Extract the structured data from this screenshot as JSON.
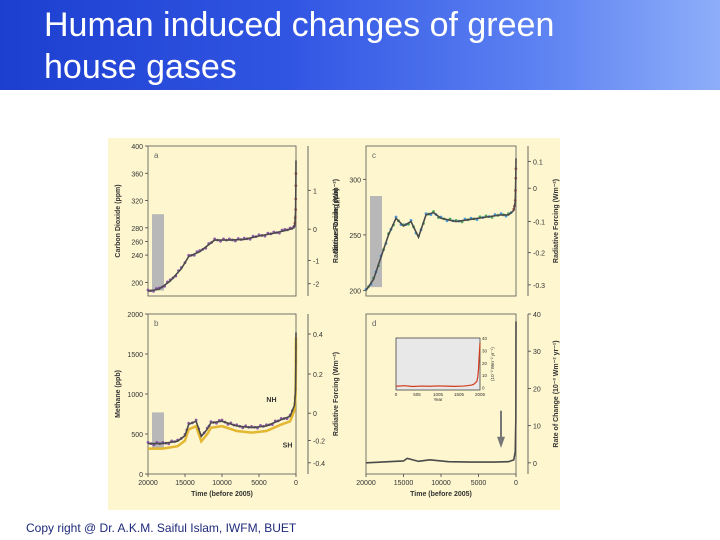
{
  "header": {
    "title_line1": "Human induced changes of green",
    "title_line2": "house gases"
  },
  "footer": {
    "credit": "Copy right @ Dr. A.K.M. Saiful Islam, IWFM, BUET"
  },
  "colors": {
    "background": "#fdf6cf",
    "main_series": "#4a4a4a",
    "panel_a_recent": "#c0392b",
    "panel_a_core": "#7a3fa0",
    "panel_c_core_1": "#2e8bd8",
    "panel_c_core_2": "#2e9a4a",
    "panel_c_recent": "#c0392b",
    "panel_b_nh": "#7a3fa0",
    "panel_b_sh": "#e0b020",
    "panel_d_inset": "#d23a1a",
    "range_bar": "#b8b8b8"
  },
  "chart_data": [
    {
      "id": "a",
      "type": "line",
      "panel_label": "a",
      "ylabel": "Carbon Dioxide (ppm)",
      "y2label": "Radiative Forcing (Wm⁻²)",
      "xlim": [
        20000,
        0
      ],
      "ylim": [
        180,
        400
      ],
      "yticks": [
        "400",
        "360",
        "320",
        "280",
        "260",
        "240",
        "200"
      ],
      "y2ticks": [
        "1",
        "0",
        "-1",
        "-2"
      ],
      "x": [
        20000,
        18500,
        17000,
        15500,
        14500,
        13000,
        11000,
        9000,
        7000,
        5000,
        3000,
        1500,
        800,
        300,
        150,
        50,
        20,
        0
      ],
      "values": [
        187,
        190,
        202,
        220,
        238,
        245,
        262,
        262,
        263,
        268,
        272,
        276,
        278,
        280,
        285,
        305,
        340,
        379
      ]
    },
    {
      "id": "c",
      "type": "line",
      "panel_label": "c",
      "ylabel": "Nitrous Oxide (ppb)",
      "y2label": "Radiative Forcing (Wm⁻²)",
      "xlim": [
        20000,
        0
      ],
      "ylim": [
        195,
        330
      ],
      "yticks": [
        "300",
        "250",
        "200"
      ],
      "y2ticks": [
        "0.1",
        "0",
        "-0.1",
        "-0.2",
        "-0.3"
      ],
      "x": [
        20000,
        19000,
        18000,
        17000,
        16000,
        15000,
        14000,
        13000,
        12000,
        11000,
        10000,
        8000,
        6000,
        4000,
        2000,
        1000,
        300,
        100,
        30,
        0
      ],
      "values": [
        200,
        210,
        230,
        250,
        265,
        258,
        262,
        248,
        268,
        270,
        265,
        262,
        264,
        266,
        268,
        268,
        272,
        280,
        300,
        319
      ]
    },
    {
      "id": "b",
      "type": "line",
      "panel_label": "b",
      "ylabel": "Methane (ppb)",
      "y2label": "Radiative Forcing (Wm⁻²)",
      "xlim": [
        20000,
        0
      ],
      "ylim": [
        0,
        2000
      ],
      "yticks": [
        "2000",
        "1500",
        "1000",
        "500",
        "0"
      ],
      "y2ticks": [
        "0.4",
        "0.2",
        "0",
        "-0.2",
        "-0.4"
      ],
      "annotations": [
        "NH",
        "SH"
      ],
      "x": [
        20000,
        18000,
        16000,
        15000,
        14500,
        13500,
        12800,
        12000,
        11500,
        10000,
        8000,
        6000,
        4000,
        2000,
        800,
        200,
        60,
        20,
        0
      ],
      "values": [
        380,
        380,
        410,
        480,
        620,
        660,
        470,
        560,
        640,
        660,
        600,
        580,
        600,
        680,
        720,
        860,
        1050,
        1400,
        1770
      ]
    },
    {
      "id": "d",
      "type": "line",
      "panel_label": "d",
      "y2label": "Rate of Change (10⁻³ Wm⁻² yr⁻¹)",
      "xlim": [
        20000,
        0
      ],
      "ylim": [
        -3,
        40
      ],
      "y2ticks": [
        "40",
        "30",
        "20",
        "10",
        "0"
      ],
      "x": [
        20000,
        17000,
        15000,
        14500,
        13000,
        11500,
        9000,
        6000,
        3000,
        1000,
        300,
        100,
        20,
        0
      ],
      "values": [
        0,
        0.3,
        0.5,
        1.2,
        0.4,
        0.8,
        0.3,
        0.2,
        0.2,
        0.3,
        0.8,
        3,
        12,
        38
      ],
      "inset": {
        "xticks": [
          "0",
          "505",
          "1005",
          "1505",
          "2005"
        ],
        "xlabel": "Year",
        "yticks": [
          "40",
          "30",
          "20",
          "10",
          "0"
        ],
        "y2label": "(10⁻³ Wm⁻² yr⁻¹)",
        "xlim": [
          0,
          2005
        ],
        "ylim": [
          -2,
          40
        ],
        "x": [
          0,
          200,
          400,
          600,
          800,
          1000,
          1200,
          1400,
          1600,
          1700,
          1800,
          1850,
          1900,
          1930,
          1950,
          1970,
          1985,
          2005
        ],
        "values": [
          1,
          1.5,
          0.8,
          1.2,
          1,
          1.3,
          1.1,
          0.9,
          1.2,
          1.5,
          2,
          2.5,
          4,
          5,
          8,
          15,
          25,
          36
        ]
      }
    }
  ],
  "axis_labels": {
    "xlabel": "Time (before 2005)",
    "xticks": [
      "20000",
      "15000",
      "10000",
      "5000",
      "0"
    ]
  }
}
